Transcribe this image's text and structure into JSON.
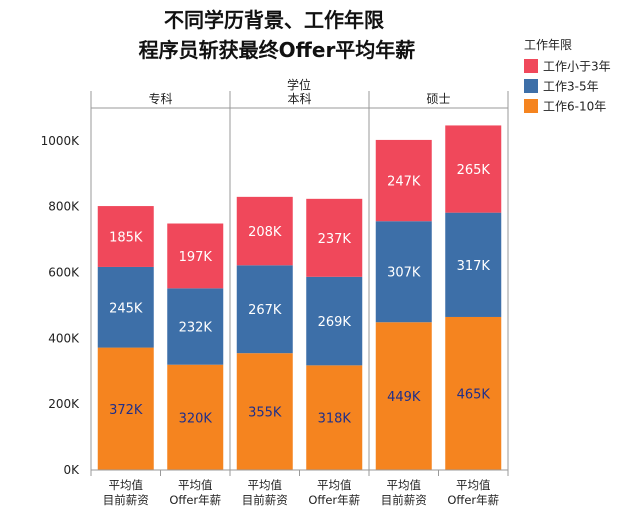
{
  "chart_data": {
    "type": "bar",
    "stacked": true,
    "title_lines": [
      "不同学历背景、工作年限",
      "程序员斩获最终Offer平均年薪"
    ],
    "top_axis_title": "学位",
    "groups": [
      "专科",
      "本科",
      "硕士"
    ],
    "categories": [
      [
        "平均值",
        "目前薪资"
      ],
      [
        "平均值",
        "Offer年薪"
      ],
      [
        "平均值",
        "目前薪资"
      ],
      [
        "平均值",
        "Offer年薪"
      ],
      [
        "平均值",
        "目前薪资"
      ],
      [
        "平均值",
        "Offer年薪"
      ]
    ],
    "legend_title": "工作年限",
    "legend_position": "top-right",
    "series": [
      {
        "name": "工作6-10年",
        "color": "#f5841f",
        "values": [
          372,
          320,
          355,
          318,
          449,
          465
        ],
        "labels": [
          "372K",
          "320K",
          "355K",
          "318K",
          "449K",
          "465K"
        ]
      },
      {
        "name": "工作3-5年",
        "color": "#3d6fa8",
        "values": [
          245,
          232,
          267,
          269,
          307,
          317
        ],
        "labels": [
          "245K",
          "232K",
          "267K",
          "269K",
          "307K",
          "317K"
        ]
      },
      {
        "name": "工作小于3年",
        "color": "#f0485b",
        "values": [
          185,
          197,
          208,
          237,
          247,
          265
        ],
        "labels": [
          "185K",
          "197K",
          "208K",
          "237K",
          "247K",
          "265K"
        ]
      }
    ],
    "legend_order": [
      2,
      1,
      0
    ],
    "y_ticks": [
      "0K",
      "200K",
      "400K",
      "600K",
      "800K",
      "1000K"
    ],
    "y_tick_values": [
      0,
      200,
      400,
      600,
      800,
      1000
    ],
    "ylim": [
      0,
      1100
    ],
    "grid": false,
    "label_colors": {
      "light": "#ffffff",
      "dark": "#1f2f8a"
    }
  }
}
